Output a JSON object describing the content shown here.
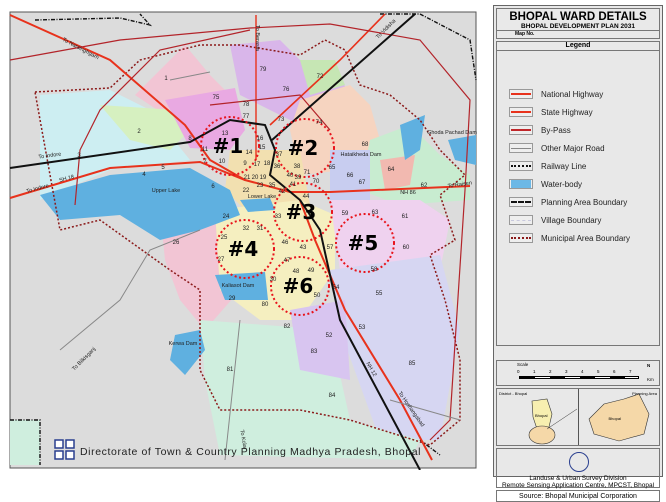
{
  "title": "BHOPAL WARD DETAILS",
  "subtitle": "BHOPAL DEVELOPMENT PLAN 2031",
  "map_no_label": "Map No.",
  "legend_heading": "Legend",
  "legend": [
    {
      "label": "National Highway",
      "color": "#e8321c"
    },
    {
      "label": "State Highway",
      "color": "#e8321c"
    },
    {
      "label": "By-Pass",
      "color": "#c0262a"
    },
    {
      "label": "Other Major Road",
      "color": "#888888"
    },
    {
      "label": "Railway Line",
      "color": "#111111"
    },
    {
      "label": "Water-body",
      "color": "#6cb8e6"
    },
    {
      "label": "Planning Area Boundary",
      "color": "#111111"
    },
    {
      "label": "Village Boundary",
      "color": "#c8c8dd"
    },
    {
      "label": "Municipal Area Boundary",
      "color": "#8b1a1a"
    }
  ],
  "scale": {
    "label": "Scale",
    "ticks": [
      "0",
      "1",
      "2",
      "3",
      "4",
      "5",
      "6",
      "7"
    ],
    "unit": "Km",
    "north": "N"
  },
  "inset": {
    "left_label": "District - Bhopal",
    "right_label": "Planning Area",
    "left_name": "Bhopal",
    "right_name": "Bhopal"
  },
  "credit": {
    "line1": "Landuse & Urban Survey Division",
    "line2": "Remote Sensing Application Centre, MPCST, Bhopal"
  },
  "source": "Source: Bhopal Municipal Corporation",
  "footer": "Directorate of Town & Country Planning Madhya Pradesh, Bhopal",
  "zones": [
    "#1",
    "#2",
    "#3",
    "#4",
    "#5",
    "#6"
  ],
  "places": [
    "Upper Lake",
    "Lower Lake",
    "Hataikheda Dam",
    "Ghoda Pachad Dam",
    "Kaliasot Dam",
    "Kerwa Dam",
    "To Narsinghgarh",
    "To Indore",
    "To Indore",
    "SH 18",
    "NH 86",
    "To Raisen",
    "To Vidisha",
    "To Berasia",
    "To Bilkisganj",
    "To Kolar",
    "NH 12",
    "To Hoshangabad"
  ],
  "wards": [
    "1",
    "2",
    "3",
    "4",
    "5",
    "6",
    "7",
    "8",
    "9",
    "10",
    "11",
    "13",
    "14",
    "15",
    "16",
    "17",
    "18",
    "19",
    "20",
    "21",
    "22",
    "23",
    "24",
    "25",
    "26",
    "27",
    "29",
    "30",
    "31",
    "32",
    "33",
    "35",
    "36",
    "37",
    "38",
    "39",
    "40",
    "41",
    "42",
    "43",
    "44",
    "46",
    "47",
    "48",
    "49",
    "50",
    "52",
    "53",
    "54",
    "55",
    "57",
    "58",
    "59",
    "60",
    "61",
    "62",
    "63",
    "64",
    "65",
    "66",
    "67",
    "68",
    "70",
    "71",
    "72",
    "73",
    "74",
    "75",
    "76",
    "77",
    "78",
    "79",
    "80",
    "81",
    "82",
    "83",
    "84",
    "85"
  ]
}
